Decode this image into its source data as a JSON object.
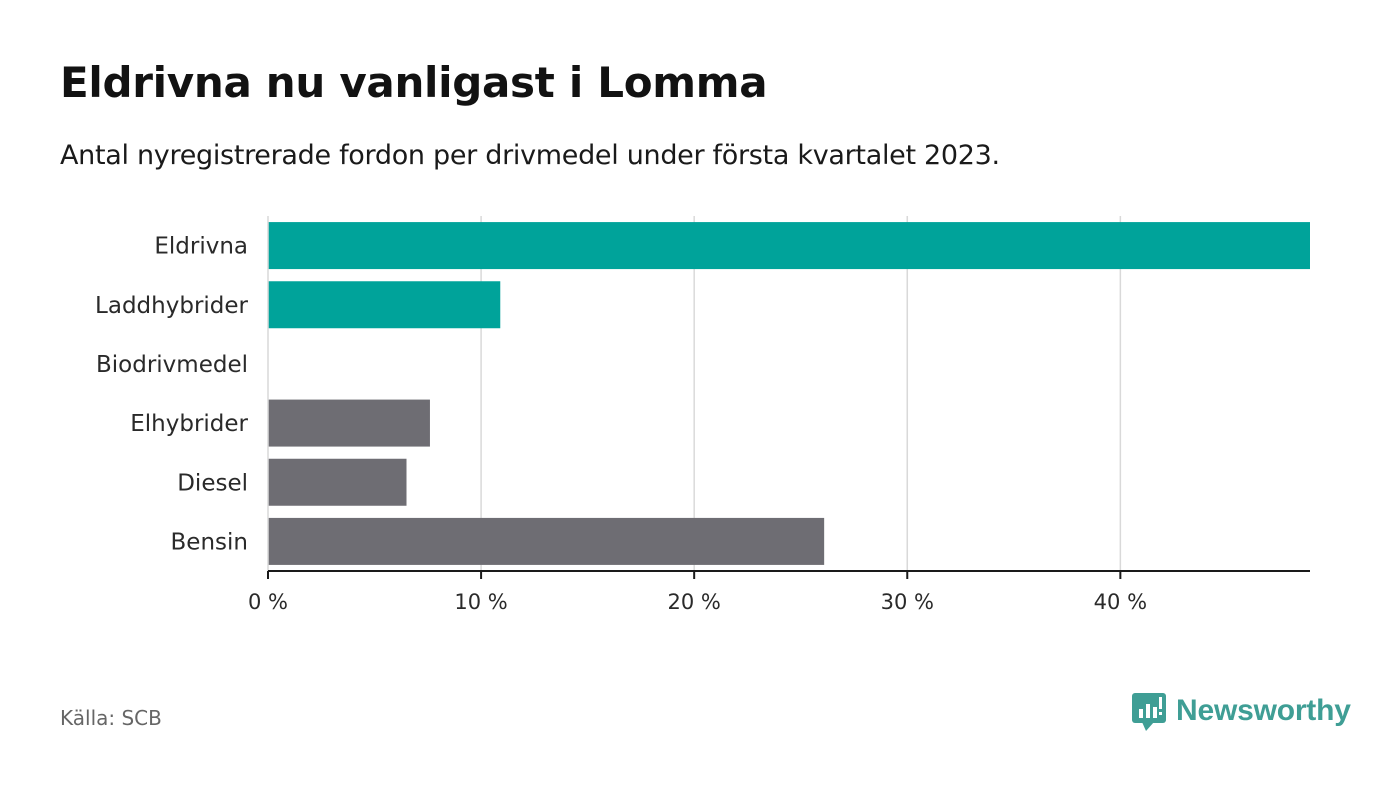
{
  "title": "Eldrivna nu vanligast i Lomma",
  "subtitle": "Antal nyregistrerade fordon per drivmedel under första kvartalet 2023.",
  "source": "Källa: SCB",
  "brand": "Newsworthy",
  "colors": {
    "highlight": "#00a39a",
    "other": "#6e6d73",
    "grid": "#d9d9d9",
    "axis": "#1a1a1a",
    "brand": "#3f9e95"
  },
  "chart_data": {
    "type": "bar",
    "orientation": "horizontal",
    "categories": [
      "Eldrivna",
      "Laddhybrider",
      "Biodrivmedel",
      "Elhybrider",
      "Diesel",
      "Bensin"
    ],
    "values": [
      48.9,
      10.9,
      0,
      7.6,
      6.5,
      26.1
    ],
    "highlighted": [
      true,
      true,
      false,
      false,
      false,
      false
    ],
    "xticks": [
      0,
      10,
      20,
      30,
      40
    ],
    "xtick_labels": [
      "0 %",
      "10 %",
      "20 %",
      "30 %",
      "40 %"
    ],
    "xlim": [
      0,
      48.9
    ],
    "grid": true
  }
}
